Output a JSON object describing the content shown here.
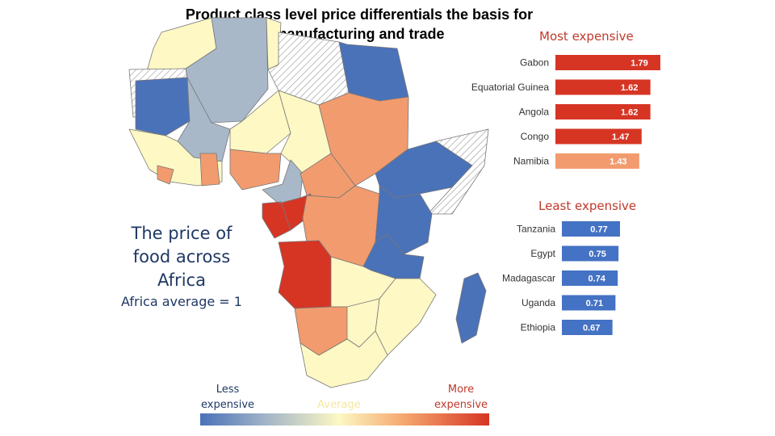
{
  "title_line1": "Product class level price differentials the basis for",
  "title_line2": "manufacturing and trade",
  "side": {
    "line1": "The price of",
    "line2": "food across",
    "line3": "Africa",
    "average_note": "Africa average = 1"
  },
  "legend": {
    "less_line1": "Less",
    "less_line2": "expensive",
    "average": "Average",
    "more_line1": "More",
    "more_line2": "expensive"
  },
  "colors": {
    "expensive_dark": "#d63524",
    "expensive_light": "#f29b6e",
    "cheap": "#4472c4",
    "average": "#fff9c4"
  },
  "chart_data": [
    {
      "type": "bar",
      "title": "Most expensive",
      "categories": [
        "Gabon",
        "Equatorial Guinea",
        "Angola",
        "Congo",
        "Namibia"
      ],
      "values": [
        1.79,
        1.62,
        1.62,
        1.47,
        1.43
      ],
      "value_labels": [
        "1.79",
        "1.62",
        "1.62",
        "1.47",
        "1.43"
      ],
      "xlim": [
        0,
        1.79
      ]
    },
    {
      "type": "bar",
      "title": "Least expensive",
      "categories": [
        "Tanzania",
        "Egypt",
        "Madagascar",
        "Uganda",
        "Ethiopia"
      ],
      "values": [
        0.77,
        0.75,
        0.74,
        0.71,
        0.67
      ],
      "value_labels": [
        "0.77",
        "0.75",
        "0.74",
        "0.71",
        "0.67"
      ],
      "xlim": [
        0,
        0.77
      ]
    }
  ]
}
